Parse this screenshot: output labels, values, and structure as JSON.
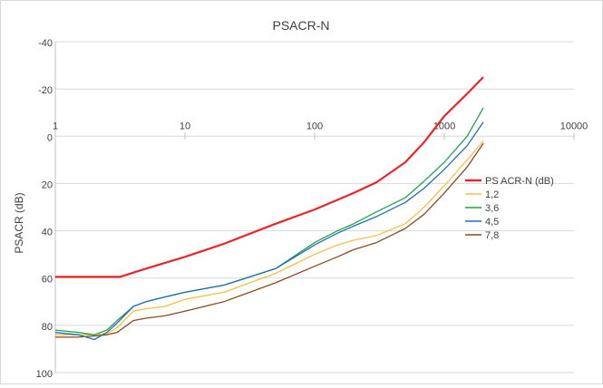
{
  "chart_data": {
    "type": "line",
    "title": "PSACR-N",
    "ylabel": "PSACR (dB)",
    "xlabel": "",
    "x_scale": "log",
    "xlim": [
      1,
      10000
    ],
    "ylim": [
      -40,
      100
    ],
    "y_reversed": true,
    "x_ticks": [
      "1",
      "10",
      "100",
      "1000",
      "10000"
    ],
    "y_ticks": [
      "-40",
      "-20",
      "0",
      "20",
      "40",
      "60",
      "80",
      "100"
    ],
    "grid": "horizontal",
    "legend_position": "right",
    "series": [
      {
        "name": "PS ACR-N (dB)",
        "color": "#e8262a",
        "x": [
          1,
          3.15,
          5,
          10,
          20,
          50,
          100,
          200,
          300,
          500,
          700,
          1000,
          1500,
          2000
        ],
        "y": [
          59.5,
          59.5,
          56,
          51,
          45.5,
          37,
          31,
          24,
          19.5,
          11,
          2.5,
          -8.5,
          -18,
          -25
        ]
      },
      {
        "name": "1,2",
        "color": "#f5c045",
        "x": [
          1,
          1.5,
          2,
          2.5,
          3,
          4,
          5,
          7,
          10,
          20,
          50,
          100,
          150,
          200,
          300,
          500,
          700,
          1000,
          1500,
          2000
        ],
        "y": [
          84,
          84,
          84,
          83.5,
          81,
          74,
          73,
          72,
          69,
          66,
          58,
          50,
          46,
          44,
          42,
          37,
          30,
          21,
          10,
          2
        ]
      },
      {
        "name": "3,6",
        "color": "#23a14a",
        "x": [
          1,
          1.5,
          2,
          2.5,
          3,
          4,
          5,
          7,
          10,
          20,
          50,
          100,
          150,
          200,
          300,
          500,
          700,
          1000,
          1500,
          2000
        ],
        "y": [
          82,
          83,
          84,
          82,
          78,
          72,
          70,
          68,
          66,
          63,
          56,
          45,
          40,
          37,
          32,
          26,
          19,
          11,
          0,
          -12
        ]
      },
      {
        "name": "4,5",
        "color": "#1f6fb5",
        "x": [
          1,
          1.5,
          2,
          2.5,
          3,
          4,
          5,
          7,
          10,
          20,
          50,
          100,
          150,
          200,
          300,
          500,
          700,
          1000,
          1500,
          2000
        ],
        "y": [
          83,
          84,
          86,
          83,
          79,
          72,
          70,
          68,
          66,
          63,
          56,
          46,
          41,
          38,
          34,
          28,
          22,
          14,
          4,
          -6
        ]
      },
      {
        "name": "7,8",
        "color": "#8b4a22",
        "x": [
          1,
          1.5,
          2,
          2.5,
          3,
          4,
          5,
          7,
          10,
          20,
          50,
          100,
          150,
          200,
          300,
          500,
          700,
          1000,
          1500,
          2000
        ],
        "y": [
          85,
          85,
          84.5,
          84,
          83,
          78,
          77,
          76,
          74,
          70,
          62,
          55,
          51,
          48,
          45,
          39,
          33,
          24,
          13,
          3
        ]
      }
    ]
  }
}
